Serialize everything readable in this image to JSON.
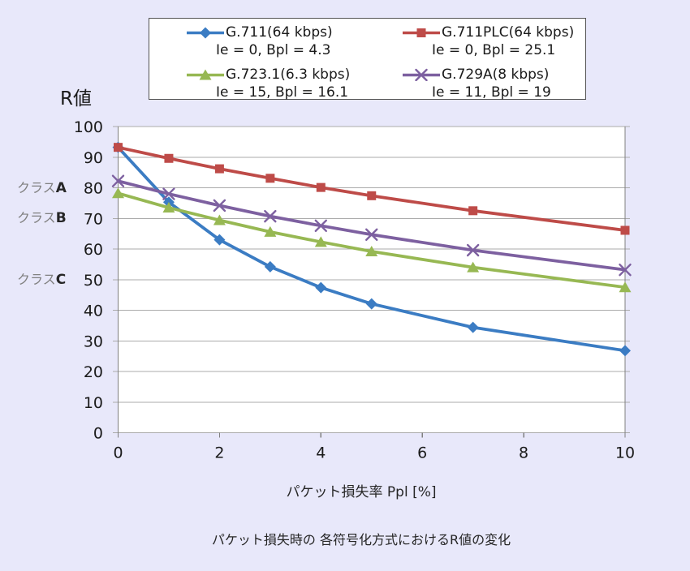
{
  "page": {
    "background": "#E8E8FA",
    "caption": "パケット損失時の 各符号化方式におけるR値の変化"
  },
  "chart_data": {
    "type": "line",
    "y_axis_label": "R値",
    "x_axis_label": "パケット損失率 Ppl [%]",
    "x": [
      0,
      1,
      2,
      3,
      4,
      5,
      7,
      10
    ],
    "x_ticks": [
      0,
      2,
      4,
      6,
      8,
      10
    ],
    "y_ticks": [
      100,
      90,
      80,
      70,
      60,
      50,
      40,
      30,
      20,
      10,
      0
    ],
    "xlim": [
      0,
      10
    ],
    "ylim": [
      0,
      100
    ],
    "grid": "horizontal",
    "legend_position": "top",
    "plot_background": "#FFFFFF",
    "gridline_color": "#ABABAB",
    "axis_color": "#808080",
    "series": [
      {
        "name": "G.711(64 kbps)",
        "subtitle": "Ie = 0, Bpl = 4.3",
        "color": "#3B7CC3",
        "marker": "diamond",
        "values": [
          93.2,
          75.3,
          63.0,
          54.2,
          47.4,
          42.1,
          34.4,
          26.8
        ]
      },
      {
        "name": "G.711PLC(64 kbps)",
        "subtitle": "Ie = 0, Bpl = 25.1",
        "color": "#BE4B48",
        "marker": "square",
        "values": [
          93.2,
          89.6,
          86.2,
          83.1,
          80.1,
          77.4,
          72.5,
          66.1
        ]
      },
      {
        "name": "G.723.1(6.3 kbps)",
        "subtitle": "Ie = 15, Bpl = 16.1",
        "color": "#97B853",
        "marker": "triangle",
        "values": [
          78.2,
          73.5,
          69.4,
          65.6,
          62.3,
          59.2,
          54.0,
          47.5
        ]
      },
      {
        "name": "G.729A(8 kbps)",
        "subtitle": "Ie = 11, Bpl = 19",
        "color": "#7D60A0",
        "marker": "x",
        "values": [
          82.2,
          78.0,
          74.2,
          70.7,
          67.6,
          64.7,
          59.6,
          53.2
        ]
      }
    ],
    "annotations": [
      {
        "prefix": "クラス",
        "letter": "A",
        "y": 80
      },
      {
        "prefix": "クラス",
        "letter": "B",
        "y": 70
      },
      {
        "prefix": "クラス",
        "letter": "C",
        "y": 50
      }
    ]
  }
}
